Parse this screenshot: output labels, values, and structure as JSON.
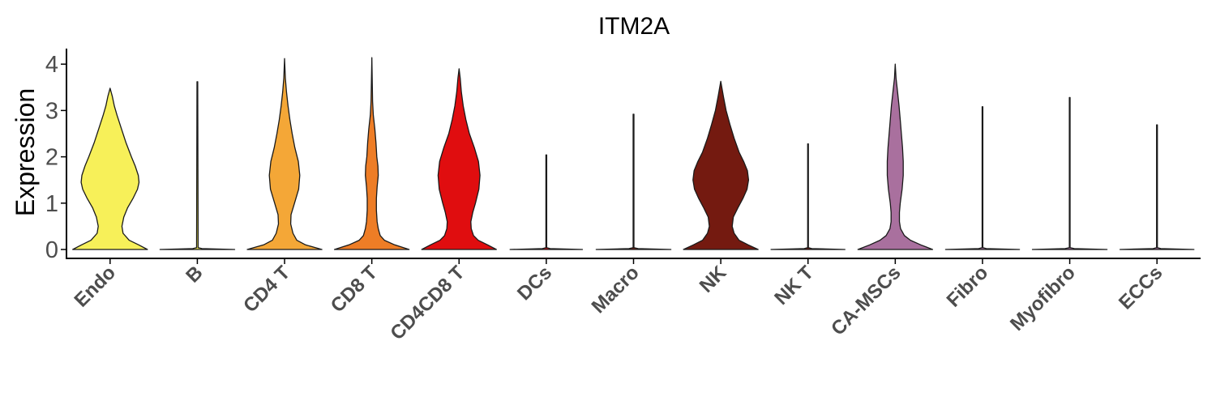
{
  "chart_data": {
    "type": "violin",
    "title": "ITM2A",
    "ylabel": "Expression",
    "xlabel": "",
    "ylim": [
      -0.2,
      4.3
    ],
    "yticks": [
      0,
      1,
      2,
      3,
      4
    ],
    "grid": false,
    "legend": "none",
    "categories": [
      "Endo",
      "B",
      "CD4 T",
      "CD8 T",
      "CD4CD8 T",
      "DCs",
      "Macro",
      "NK",
      "NK T",
      "CA-MSCs",
      "Fibro",
      "Myofibro",
      "ECCs"
    ],
    "colors": [
      "#F7F059",
      "#F7F059",
      "#F4A737",
      "#EE7D26",
      "#E00D0F",
      "#E00D0F",
      "#7A1A10",
      "#741A10",
      "#741A10",
      "#A9709E",
      "#A9709E",
      "#A9709E",
      "#A9709E"
    ],
    "max_values": [
      3.48,
      3.62,
      4.12,
      4.14,
      3.9,
      2.04,
      2.92,
      3.63,
      2.28,
      4.0,
      3.08,
      3.28,
      2.69
    ],
    "density_profiles": [
      [
        [
          0,
          0.98
        ],
        [
          0.1,
          0.75
        ],
        [
          0.2,
          0.5
        ],
        [
          0.35,
          0.34
        ],
        [
          0.5,
          0.31
        ],
        [
          0.7,
          0.36
        ],
        [
          0.9,
          0.46
        ],
        [
          1.1,
          0.6
        ],
        [
          1.3,
          0.72
        ],
        [
          1.45,
          0.76
        ],
        [
          1.6,
          0.74
        ],
        [
          1.8,
          0.66
        ],
        [
          2.0,
          0.56
        ],
        [
          2.3,
          0.42
        ],
        [
          2.6,
          0.3
        ],
        [
          2.9,
          0.18
        ],
        [
          3.1,
          0.11
        ],
        [
          3.3,
          0.06
        ],
        [
          3.48,
          0
        ]
      ],
      [
        [
          0,
          0.98
        ],
        [
          0.02,
          0.12
        ],
        [
          0.04,
          0.02
        ],
        [
          3.62,
          0.01
        ]
      ],
      [
        [
          0,
          0.98
        ],
        [
          0.1,
          0.55
        ],
        [
          0.2,
          0.32
        ],
        [
          0.35,
          0.22
        ],
        [
          0.55,
          0.16
        ],
        [
          0.75,
          0.17
        ],
        [
          1.0,
          0.26
        ],
        [
          1.3,
          0.37
        ],
        [
          1.6,
          0.4
        ],
        [
          1.9,
          0.36
        ],
        [
          2.2,
          0.27
        ],
        [
          2.5,
          0.2
        ],
        [
          2.8,
          0.14
        ],
        [
          3.1,
          0.09
        ],
        [
          3.4,
          0.05
        ],
        [
          3.7,
          0.02
        ],
        [
          4.12,
          0
        ]
      ],
      [
        [
          0,
          0.98
        ],
        [
          0.1,
          0.6
        ],
        [
          0.2,
          0.33
        ],
        [
          0.3,
          0.22
        ],
        [
          0.45,
          0.17
        ],
        [
          0.6,
          0.14
        ],
        [
          0.85,
          0.12
        ],
        [
          1.1,
          0.12
        ],
        [
          1.35,
          0.14
        ],
        [
          1.6,
          0.17
        ],
        [
          1.8,
          0.16
        ],
        [
          2.0,
          0.13
        ],
        [
          2.3,
          0.11
        ],
        [
          2.6,
          0.08
        ],
        [
          2.9,
          0.04
        ],
        [
          3.2,
          0.02
        ],
        [
          4.14,
          0
        ]
      ],
      [
        [
          0,
          0.98
        ],
        [
          0.1,
          0.75
        ],
        [
          0.2,
          0.5
        ],
        [
          0.3,
          0.38
        ],
        [
          0.45,
          0.32
        ],
        [
          0.6,
          0.31
        ],
        [
          0.8,
          0.36
        ],
        [
          1.0,
          0.43
        ],
        [
          1.3,
          0.52
        ],
        [
          1.6,
          0.55
        ],
        [
          1.9,
          0.51
        ],
        [
          2.2,
          0.4
        ],
        [
          2.5,
          0.27
        ],
        [
          2.8,
          0.18
        ],
        [
          3.1,
          0.11
        ],
        [
          3.4,
          0.06
        ],
        [
          3.7,
          0.03
        ],
        [
          3.9,
          0
        ]
      ],
      [
        [
          0,
          0.95
        ],
        [
          0.02,
          0.1
        ],
        [
          0.04,
          0.01
        ],
        [
          2.04,
          0.01
        ]
      ],
      [
        [
          0,
          0.98
        ],
        [
          0.02,
          0.12
        ],
        [
          0.04,
          0.01
        ],
        [
          2.92,
          0.01
        ]
      ],
      [
        [
          0,
          0.98
        ],
        [
          0.1,
          0.72
        ],
        [
          0.2,
          0.48
        ],
        [
          0.35,
          0.35
        ],
        [
          0.5,
          0.3
        ],
        [
          0.7,
          0.33
        ],
        [
          0.9,
          0.45
        ],
        [
          1.1,
          0.58
        ],
        [
          1.3,
          0.69
        ],
        [
          1.5,
          0.73
        ],
        [
          1.7,
          0.7
        ],
        [
          1.9,
          0.6
        ],
        [
          2.1,
          0.48
        ],
        [
          2.4,
          0.35
        ],
        [
          2.7,
          0.24
        ],
        [
          3.0,
          0.14
        ],
        [
          3.3,
          0.07
        ],
        [
          3.63,
          0
        ]
      ],
      [
        [
          0,
          0.97
        ],
        [
          0.02,
          0.1
        ],
        [
          0.04,
          0.01
        ],
        [
          2.28,
          0.01
        ]
      ],
      [
        [
          0,
          0.98
        ],
        [
          0.1,
          0.67
        ],
        [
          0.2,
          0.4
        ],
        [
          0.3,
          0.24
        ],
        [
          0.45,
          0.14
        ],
        [
          0.6,
          0.11
        ],
        [
          0.8,
          0.11
        ],
        [
          1.0,
          0.13
        ],
        [
          1.3,
          0.18
        ],
        [
          1.6,
          0.21
        ],
        [
          1.9,
          0.21
        ],
        [
          2.2,
          0.19
        ],
        [
          2.5,
          0.16
        ],
        [
          2.8,
          0.13
        ],
        [
          3.1,
          0.1
        ],
        [
          3.4,
          0.06
        ],
        [
          3.7,
          0.02
        ],
        [
          4.0,
          0
        ]
      ],
      [
        [
          0,
          0.97
        ],
        [
          0.02,
          0.1
        ],
        [
          0.04,
          0.01
        ],
        [
          3.08,
          0.01
        ]
      ],
      [
        [
          0,
          0.98
        ],
        [
          0.02,
          0.12
        ],
        [
          0.04,
          0.01
        ],
        [
          3.28,
          0.01
        ]
      ],
      [
        [
          0,
          0.97
        ],
        [
          0.02,
          0.1
        ],
        [
          0.04,
          0.01
        ],
        [
          2.69,
          0.01
        ]
      ]
    ]
  }
}
